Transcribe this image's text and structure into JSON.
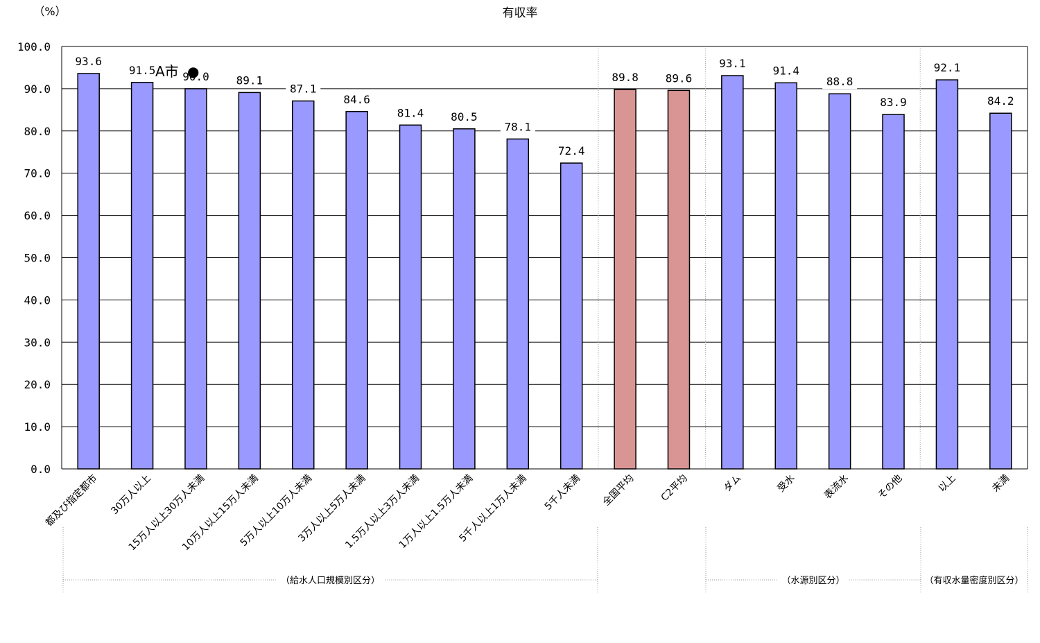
{
  "chart_data": {
    "type": "bar",
    "title": "有収率",
    "ylabel": "（%）",
    "ylim": [
      0,
      100
    ],
    "yticks": [
      "100.0",
      "90.0",
      "80.0",
      "70.0",
      "60.0",
      "50.0",
      "40.0",
      "30.0",
      "20.0",
      "10.0",
      "0.0"
    ],
    "grid": true,
    "categories": [
      "都及び指定都市",
      "30万人以上",
      "15万人以上30万人未満",
      "10万人以上15万人未満",
      "5万人以上10万人未満",
      "3万人以上5万人未満",
      "1.5万人以上3万人未満",
      "1万人以上1.5万人未満",
      "5千人以上1万人未満",
      "5千人未満",
      "全国平均",
      "C2平均",
      "ダム",
      "受水",
      "表流水",
      "その他",
      "以上",
      "未満"
    ],
    "values": [
      93.6,
      91.5,
      90.0,
      89.1,
      87.1,
      84.6,
      81.4,
      80.5,
      78.1,
      72.4,
      89.8,
      89.6,
      93.1,
      91.4,
      88.8,
      83.9,
      92.1,
      84.2
    ],
    "value_labels": [
      "93.6",
      "91.5",
      "90.0",
      "89.1",
      "87.1",
      "84.6",
      "81.4",
      "80.5",
      "78.1",
      "72.4",
      "89.8",
      "89.6",
      "93.1",
      "91.4",
      "88.8",
      "83.9",
      "92.1",
      "84.2"
    ],
    "bar_colors": [
      "#9999ff",
      "#9999ff",
      "#9999ff",
      "#9999ff",
      "#9999ff",
      "#9999ff",
      "#9999ff",
      "#9999ff",
      "#9999ff",
      "#9999ff",
      "#d99594",
      "#d99594",
      "#9999ff",
      "#9999ff",
      "#9999ff",
      "#9999ff",
      "#9999ff",
      "#9999ff"
    ],
    "groups": [
      "（給水人口規模別区分）",
      "（水源別区分）",
      "（有収水量密度別区分）"
    ],
    "annotations": [
      {
        "text": "A市",
        "marker": "●",
        "value": 91.5
      }
    ]
  }
}
